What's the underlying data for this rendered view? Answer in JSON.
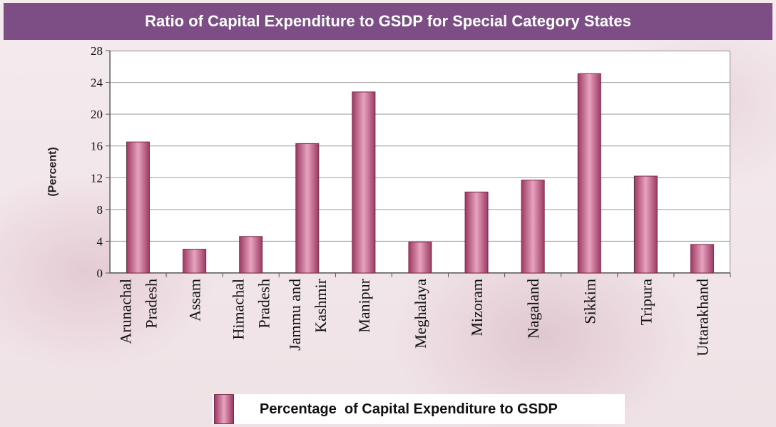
{
  "title": "Ratio of Capital Expenditure to GSDP for Special Category States",
  "colors": {
    "title_bar": "#7d4e86",
    "bar_dark": "#9c3a63",
    "bar_light": "#e7a3bf"
  },
  "legend": {
    "label": "Percentage  of Capital Expenditure to GSDP"
  },
  "chart_data": {
    "type": "bar",
    "title": "Ratio of Capital Expenditure to GSDP for Special Category States",
    "xlabel": "",
    "ylabel": "(Percent)",
    "ylim": [
      0,
      28
    ],
    "yticks": [
      0,
      4,
      8,
      12,
      16,
      20,
      24,
      28
    ],
    "grid": true,
    "legend_position": "bottom",
    "categories": [
      "Arunachal Pradesh",
      "Assam",
      "Himachal Pradesh",
      "Jammu and Kashmir",
      "Manipur",
      "Meghalaya",
      "Mizoram",
      "Nagaland",
      "Sikkim",
      "Tripura",
      "Uttarakhand"
    ],
    "category_lines": [
      [
        "Arunachal",
        "Pradesh"
      ],
      [
        "Assam"
      ],
      [
        "Himachal",
        "Pradesh"
      ],
      [
        "Jammu and",
        "Kashmir"
      ],
      [
        "Manipur"
      ],
      [
        "Meghalaya"
      ],
      [
        "Mizoram"
      ],
      [
        "Nagaland"
      ],
      [
        "Sikkim"
      ],
      [
        "Tripura"
      ],
      [
        "Uttarakhand"
      ]
    ],
    "series": [
      {
        "name": "Percentage  of Capital Expenditure to GSDP",
        "values": [
          16.5,
          3.0,
          4.6,
          16.3,
          22.8,
          3.9,
          10.2,
          11.7,
          25.1,
          12.2,
          3.6
        ]
      }
    ]
  }
}
